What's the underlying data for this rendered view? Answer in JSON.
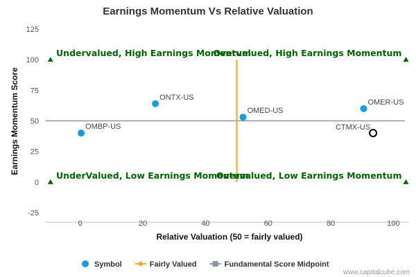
{
  "chart_data": {
    "type": "scatter",
    "title": "Earnings Momentum Vs Relative Valuation",
    "xlabel": "Relative Valuation (50 = fairly valued)",
    "ylabel": "Earnings Momentum Score",
    "xlim": [
      -11,
      105
    ],
    "ylim": [
      -25,
      125
    ],
    "x_ticks": [
      0,
      20,
      40,
      60,
      80,
      100
    ],
    "y_ticks": [
      -25,
      0,
      25,
      50,
      75,
      100,
      125
    ],
    "grid": false,
    "series": [
      {
        "name": "Symbol",
        "color": "#1a9be6",
        "points": [
          {
            "label": "OMBP-US",
            "x": 0.3,
            "y": 40
          },
          {
            "label": "ONTX-US",
            "x": 24,
            "y": 64
          },
          {
            "label": "OMED-US",
            "x": 52,
            "y": 53
          },
          {
            "label": "OMER-US",
            "x": 90.5,
            "y": 60
          }
        ]
      }
    ],
    "highlight_point": {
      "label": "CTMX-US",
      "x": 93.5,
      "y": 40,
      "color": "#000000"
    },
    "reference_lines": {
      "fairly_valued": {
        "name": "Fairly Valued",
        "x": 50,
        "y_range": [
          0,
          100
        ],
        "color": "#f5a623"
      },
      "midpoint": {
        "name": "Fundamental Score Midpoint",
        "y": 50,
        "color": "#8a96a3"
      }
    },
    "quadrant_labels": [
      {
        "text": "Undervalued, High Earnings Momentum",
        "x": -9,
        "y": 100,
        "anchor": "start"
      },
      {
        "text": "Overvalued, High Earnings Momentum",
        "x": 104,
        "y": 100,
        "anchor": "end"
      },
      {
        "text": "UnderValued, Low Earnings Momentum",
        "x": -9,
        "y": 0,
        "anchor": "start"
      },
      {
        "text": "Overvalued, Low Earnings Momentum",
        "x": 104,
        "y": 0,
        "anchor": "end"
      }
    ],
    "corner_markers": [
      {
        "x": -9.5,
        "y": 100
      },
      {
        "x": 104,
        "y": 100
      },
      {
        "x": -9.5,
        "y": 0
      },
      {
        "x": 104,
        "y": 0
      }
    ],
    "quadrant_color": "#006400",
    "legend": {
      "position": "bottom",
      "items": [
        {
          "name": "Symbol",
          "kind": "dot",
          "color": "#1a9be6"
        },
        {
          "name": "Fairly Valued",
          "kind": "line-diamond",
          "color": "#f5a623"
        },
        {
          "name": "Fundamental Score Midpoint",
          "kind": "line-square",
          "color": "#8a96a3"
        }
      ]
    }
  },
  "credit": "www.capitalcube.com"
}
